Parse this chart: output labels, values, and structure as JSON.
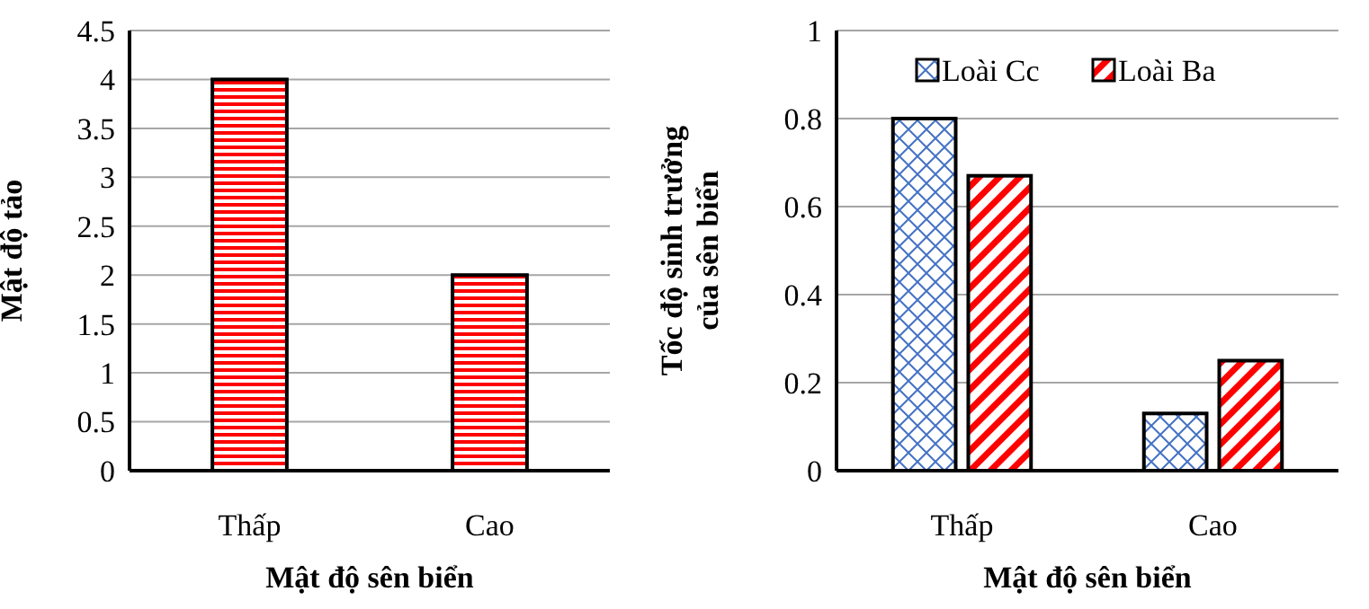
{
  "chart_data": [
    {
      "type": "bar",
      "categories": [
        "Thấp",
        "Cao"
      ],
      "xlabel": "Mật độ sên biển",
      "ylabel": "Mật độ tảo",
      "series": [
        {
          "color": "#ff0000",
          "values": [
            4,
            2
          ]
        }
      ],
      "ylim": [
        0,
        4.5
      ],
      "yticks": [
        0,
        0.5,
        1,
        1.5,
        2,
        2.5,
        3,
        3.5,
        4,
        4.5
      ],
      "grid": "y",
      "legend": false
    },
    {
      "type": "bar",
      "categories": [
        "Thấp",
        "Cao"
      ],
      "xlabel": "Mật độ sên biển",
      "ylabel": "Tốc độ sinh trưởng\ncủa sên biển",
      "series": [
        {
          "name": "Loài Cc",
          "color": "#4472c4",
          "values": [
            0.8,
            0.13
          ]
        },
        {
          "name": "Loài Ba",
          "color": "#ff0000",
          "values": [
            0.67,
            0.25
          ]
        }
      ],
      "ylim": [
        0,
        1
      ],
      "yticks": [
        0,
        0.2,
        0.4,
        0.6,
        0.8,
        1
      ],
      "grid": "y",
      "legend": "top"
    }
  ]
}
